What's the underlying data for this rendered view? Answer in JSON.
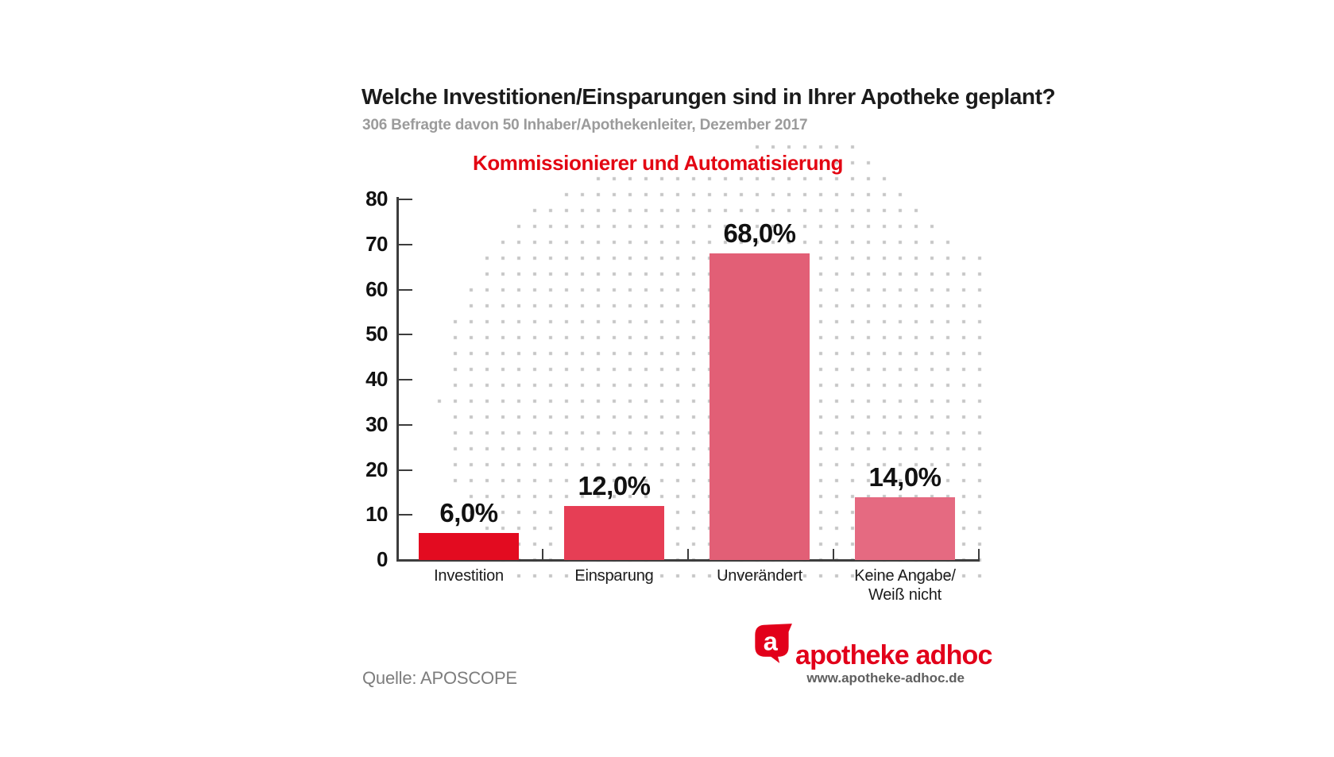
{
  "header": {
    "title": "Welche Investitionen/Einsparungen sind in Ihrer Apotheke geplant?",
    "subtitle": "306 Befragte davon 50 Inhaber/Apothekenleiter, Dezember 2017"
  },
  "chart_data": {
    "type": "bar",
    "title": "Kommissionierer und Automatisierung",
    "categories": [
      [
        "Investition"
      ],
      [
        "Einsparung"
      ],
      [
        "Unverändert"
      ],
      [
        "Keine Angabe/",
        "Weiß nicht"
      ]
    ],
    "values": [
      6.0,
      12.0,
      68.0,
      14.0
    ],
    "value_labels": [
      "6,0%",
      "12,0%",
      "68,0%",
      "14,0%"
    ],
    "bar_colors": [
      "#e30b20",
      "#e63e55",
      "#e25f76",
      "#e56a81"
    ],
    "ylim": [
      0,
      80
    ],
    "yticks": [
      0,
      10,
      20,
      30,
      40,
      50,
      60,
      70,
      80
    ],
    "xlabel": "",
    "ylabel": "",
    "grid": false,
    "legend": null
  },
  "footer": {
    "source": "Quelle: APOSCOPE",
    "brand": "apotheke adhoc",
    "brand_url": "www.apotheke-adhoc.de",
    "logo_letter": "a"
  },
  "colors": {
    "chart_title_red": "#e30613",
    "brand_red": "#e2001a",
    "axis": "#3d3d3d",
    "dot_gray": "#c6c6c6",
    "subtitle_gray": "#9b9b9b",
    "source_gray": "#7d7d7d",
    "url_gray": "#5f5f5f",
    "text_black": "#1b1b1b"
  }
}
